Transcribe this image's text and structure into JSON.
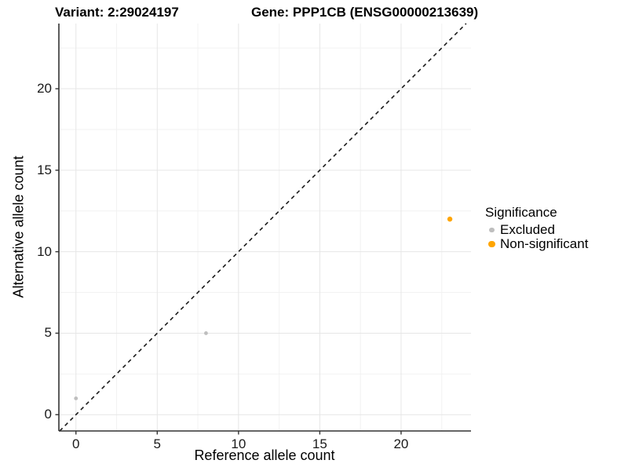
{
  "chart_data": {
    "type": "scatter",
    "title_left": "Variant: 2:29024197",
    "title_right": "Gene: PPP1CB (ENSG00000213639)",
    "xlabel": "Reference allele count",
    "ylabel": "Alternative allele count",
    "xlim": [
      -1.05,
      24.3
    ],
    "ylim": [
      -1.0,
      24.0
    ],
    "x_ticks": [
      0,
      5,
      10,
      15,
      20
    ],
    "y_ticks": [
      0,
      5,
      10,
      15,
      20
    ],
    "x_minor_ticks": [
      2.5,
      7.5,
      12.5,
      17.5,
      22.5
    ],
    "y_minor_ticks": [
      2.5,
      7.5,
      12.5,
      17.5,
      22.5
    ],
    "grid": true,
    "legend_title": "Significance",
    "legend_position": "right",
    "identity_line": {
      "style": "dashed",
      "slope": 1,
      "intercept": 0,
      "color": "#1a1a1a"
    },
    "series": [
      {
        "name": "Excluded",
        "color": "#BEBEBE",
        "point_radius": 2.4,
        "key_radius": 3.3,
        "points": [
          [
            0,
            1
          ],
          [
            8,
            5
          ]
        ]
      },
      {
        "name": "Non-significant",
        "color": "#FFA500",
        "point_radius": 3.2,
        "key_radius": 4.2,
        "points": [
          [
            23,
            12
          ]
        ]
      }
    ]
  },
  "colors": {
    "background": "#FFFFFF",
    "grid_major": "#E6E6E6",
    "grid_minor": "#F2F2F2",
    "axis_line": "#333333",
    "tick_mark": "#333333",
    "tick_text": "#1A1A1A"
  }
}
